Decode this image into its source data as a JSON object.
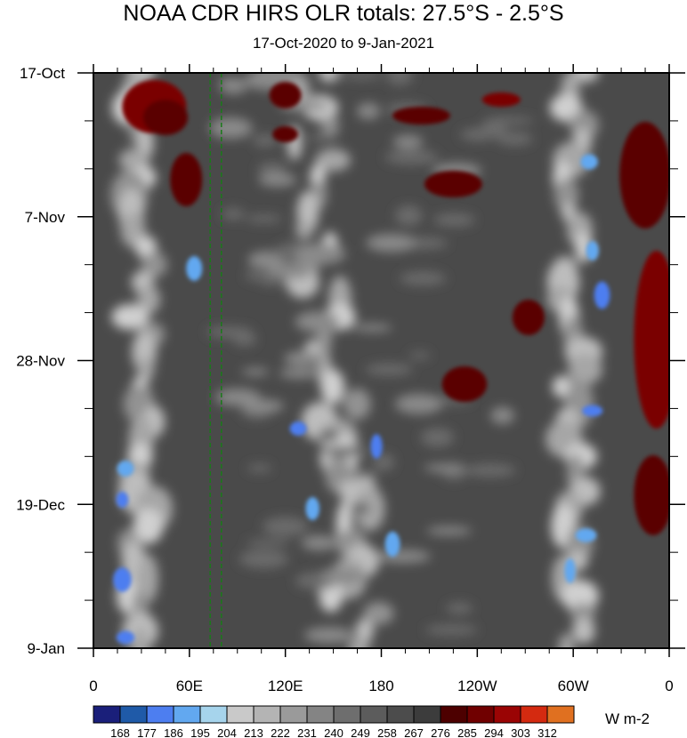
{
  "chart_data": {
    "type": "heatmap",
    "title": "NOAA CDR HIRS OLR totals: 27.5°S - 2.5°S",
    "subtitle": "17-Oct-2020 to 9-Jan-2021",
    "x_axis": {
      "ticks": [
        {
          "lon": 0,
          "label": "0"
        },
        {
          "lon": 60,
          "label": "60E"
        },
        {
          "lon": 120,
          "label": "120E"
        },
        {
          "lon": 180,
          "label": "180"
        },
        {
          "lon": 240,
          "label": "120W"
        },
        {
          "lon": 300,
          "label": "60W"
        },
        {
          "lon": 360,
          "label": "0"
        }
      ],
      "range": [
        0,
        360
      ]
    },
    "y_axis": {
      "ticks": [
        "17-Oct",
        "7-Nov",
        "28-Nov",
        "19-Dec",
        "9-Jan"
      ],
      "range": [
        "17-Oct-2020",
        "9-Jan-2021"
      ],
      "direction": "down"
    },
    "colorbar": {
      "levels": [
        "168",
        "177",
        "186",
        "195",
        "204",
        "213",
        "222",
        "231",
        "240",
        "249",
        "258",
        "267",
        "276",
        "285",
        "294",
        "303",
        "312"
      ],
      "colors": [
        "#1a1f7a",
        "#1f5aa8",
        "#4d7ef0",
        "#62a8f0",
        "#a6d4ec",
        "#c9c9c9",
        "#b4b4b4",
        "#9a9a9a",
        "#848484",
        "#6e6e6e",
        "#5c5c5c",
        "#4c4c4c",
        "#3c3c3c",
        "#4d0000",
        "#700000",
        "#9a0404",
        "#d42a10",
        "#e07020"
      ],
      "units": "W m-2"
    },
    "reference_lines": [
      {
        "lon": 73,
        "style": "dashed",
        "color": "#1a7a1a"
      },
      {
        "lon": 80,
        "style": "dashed",
        "color": "#1a7a1a"
      }
    ]
  }
}
